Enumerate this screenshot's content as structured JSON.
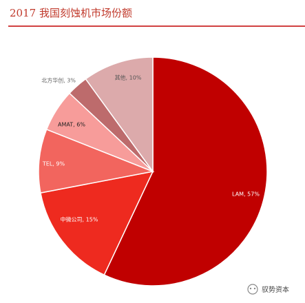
{
  "chart_data": {
    "type": "pie",
    "title": "2017 我国刻蚀机市场份额",
    "values": [
      57,
      15,
      9,
      6,
      3,
      10
    ],
    "value_labels": [
      "LAM, 57%",
      "中微公司, 15%",
      "TEL, 9%",
      "AMAT, 6%",
      "北方华创, 3%",
      "其他, 10%"
    ],
    "colors": [
      "#c00000",
      "#ee2a1f",
      "#f2655e",
      "#f79c9a",
      "#bd6b6c",
      "#dcaaab"
    ]
  },
  "watermark": "驭势资本"
}
